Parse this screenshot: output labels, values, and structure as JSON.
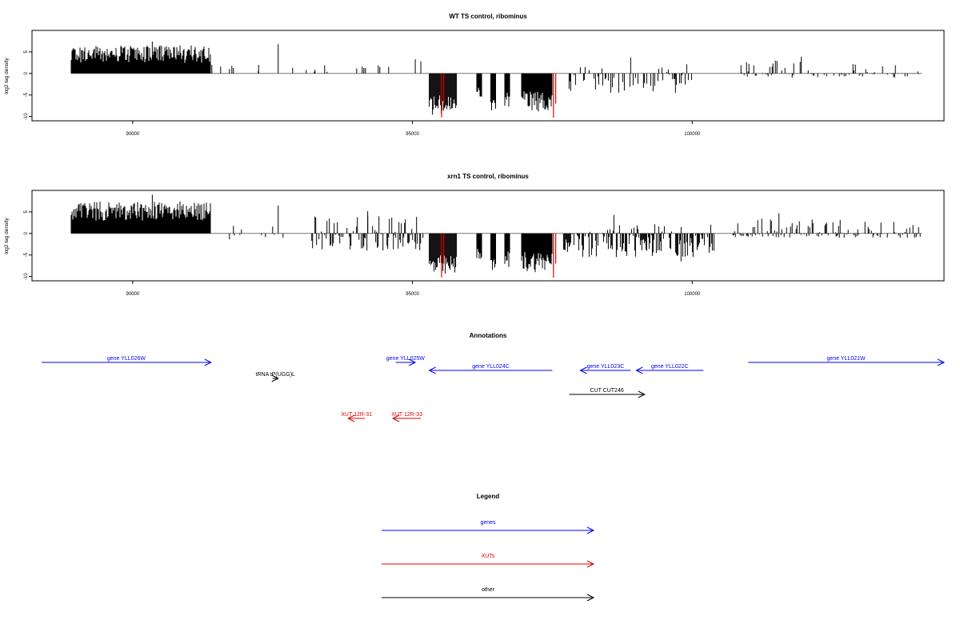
{
  "chart_data": [
    {
      "type": "bar",
      "title": "WT TS control, ribominus",
      "ylabel": "log2 tag density",
      "xlim": [
        88200,
        104500
      ],
      "ylim": [
        -11,
        10
      ],
      "xticks": [
        90000,
        95000,
        100000
      ],
      "xtick_labels": [
        "90000",
        "95000",
        "100000"
      ],
      "yticks": [
        -10,
        -5,
        0,
        5
      ],
      "ytick_labels": [
        "-10",
        "-5",
        "0",
        "5"
      ],
      "grid": false,
      "bar_color": "#000000",
      "highlight_color": "#dd0000",
      "segments": [
        {
          "x0": 88900,
          "x1": 91400,
          "min": 2.5,
          "max": 6.5,
          "density": 1.0
        },
        {
          "x0": 91400,
          "x1": 94800,
          "min": 0.3,
          "max": 2.0,
          "density": 0.06
        },
        {
          "x0": 95300,
          "x1": 95800,
          "min": -10,
          "max": -5,
          "density": 1.0
        },
        {
          "x0": 96150,
          "x1": 96250,
          "min": -6,
          "max": -3,
          "density": 1.0
        },
        {
          "x0": 96400,
          "x1": 96500,
          "min": -9,
          "max": -6,
          "density": 1.0
        },
        {
          "x0": 96650,
          "x1": 96750,
          "min": -8,
          "max": -4,
          "density": 1.0
        },
        {
          "x0": 96950,
          "x1": 97500,
          "min": -9,
          "max": -4,
          "density": 1.0
        },
        {
          "x0": 97800,
          "x1": 100000,
          "min": -4.5,
          "max": 2.5,
          "density": 0.35
        },
        {
          "x0": 100800,
          "x1": 104100,
          "min": -1,
          "max": 3,
          "density": 0.3
        }
      ],
      "spikes": [
        {
          "x": 90350,
          "y": 7.4
        },
        {
          "x": 92600,
          "y": 6.8
        },
        {
          "x": 92250,
          "y": 2.0
        },
        {
          "x": 95050,
          "y": 3.3
        },
        {
          "x": 95150,
          "y": 2.8
        },
        {
          "x": 98900,
          "y": 3.7
        },
        {
          "x": 99700,
          "y": -4.5
        },
        {
          "x": 101950,
          "y": 3.9
        }
      ],
      "red_spikes": [
        {
          "x": 95520,
          "y": -10.2
        },
        {
          "x": 95560,
          "y": -7.0
        },
        {
          "x": 97520,
          "y": -10.3
        },
        {
          "x": 97560,
          "y": -7.0
        }
      ]
    },
    {
      "type": "bar",
      "title": "xrn1 TS control, ribominus",
      "ylabel": "log2 tag density",
      "xlim": [
        88200,
        104500
      ],
      "ylim": [
        -11,
        10
      ],
      "xticks": [
        90000,
        95000,
        100000
      ],
      "xtick_labels": [
        "90000",
        "95000",
        "100000"
      ],
      "yticks": [
        -10,
        -5,
        0,
        5
      ],
      "ytick_labels": [
        "-10",
        "-5",
        "0",
        "5"
      ],
      "grid": false,
      "bar_color": "#000000",
      "highlight_color": "#dd0000",
      "segments": [
        {
          "x0": 88900,
          "x1": 91400,
          "min": 3,
          "max": 7.5,
          "density": 1.0
        },
        {
          "x0": 91400,
          "x1": 92900,
          "min": -1.5,
          "max": 2.0,
          "density": 0.12
        },
        {
          "x0": 93200,
          "x1": 95200,
          "min": -4,
          "max": 4,
          "density": 0.55
        },
        {
          "x0": 95300,
          "x1": 95800,
          "min": -10,
          "max": -5,
          "density": 1.0
        },
        {
          "x0": 96150,
          "x1": 96250,
          "min": -6,
          "max": -3,
          "density": 1.0
        },
        {
          "x0": 96400,
          "x1": 96500,
          "min": -9,
          "max": -6,
          "density": 1.0
        },
        {
          "x0": 96650,
          "x1": 96750,
          "min": -8,
          "max": -4,
          "density": 1.0
        },
        {
          "x0": 96950,
          "x1": 97500,
          "min": -9,
          "max": -4,
          "density": 1.0
        },
        {
          "x0": 97700,
          "x1": 100400,
          "min": -5.5,
          "max": 2.5,
          "density": 0.7
        },
        {
          "x0": 100700,
          "x1": 104100,
          "min": -1,
          "max": 3.5,
          "density": 0.45
        }
      ],
      "spikes": [
        {
          "x": 90350,
          "y": 9.0
        },
        {
          "x": 92600,
          "y": 6.5
        },
        {
          "x": 94200,
          "y": 5.2
        },
        {
          "x": 98600,
          "y": 4.3
        },
        {
          "x": 99800,
          "y": -6.5
        },
        {
          "x": 101550,
          "y": 4.7
        }
      ],
      "red_spikes": [
        {
          "x": 95520,
          "y": -10.2
        },
        {
          "x": 95560,
          "y": -7.0
        },
        {
          "x": 97520,
          "y": -10.3
        },
        {
          "x": 97560,
          "y": -7.0
        }
      ]
    }
  ],
  "annotations": {
    "title": "Annotations",
    "features": [
      {
        "label": "gene YLL026W",
        "start": 88300,
        "end": 91400,
        "strand": "+",
        "color": "#0000ee",
        "row": 0
      },
      {
        "label": "gene YLL025W",
        "start": 94700,
        "end": 95050,
        "strand": "+",
        "color": "#0000ee",
        "row": 0
      },
      {
        "label": "gene YLL024C",
        "start": 97500,
        "end": 95300,
        "strand": "-",
        "color": "#0000ee",
        "row": 1
      },
      {
        "label": "gene YLL023C",
        "start": 98900,
        "end": 98000,
        "strand": "-",
        "color": "#0000ee",
        "row": 1
      },
      {
        "label": "gene YLL022C",
        "start": 100200,
        "end": 99000,
        "strand": "-",
        "color": "#0000ee",
        "row": 1
      },
      {
        "label": "gene YLL021W",
        "start": 101000,
        "end": 104500,
        "strand": "+",
        "color": "#0000ee",
        "row": 0
      },
      {
        "label": "tRNA tP(UGG)L",
        "start": 92500,
        "end": 92600,
        "strand": "+",
        "color": "#000000",
        "row": 2
      },
      {
        "label": "CUT CUT246",
        "start": 97800,
        "end": 99150,
        "strand": "+",
        "color": "#000000",
        "row": 4
      },
      {
        "label": "XUT 12R-31",
        "start": 94150,
        "end": 93850,
        "strand": "-",
        "color": "#dd0000",
        "row": 7
      },
      {
        "label": "XUT 12R-33",
        "start": 95150,
        "end": 94650,
        "strand": "-",
        "color": "#dd0000",
        "row": 7
      }
    ]
  },
  "legend": {
    "title": "Legend",
    "items": [
      {
        "label": "genes",
        "color": "#0000ee"
      },
      {
        "label": "XUTs",
        "color": "#dd0000"
      },
      {
        "label": "other",
        "color": "#000000"
      }
    ]
  }
}
